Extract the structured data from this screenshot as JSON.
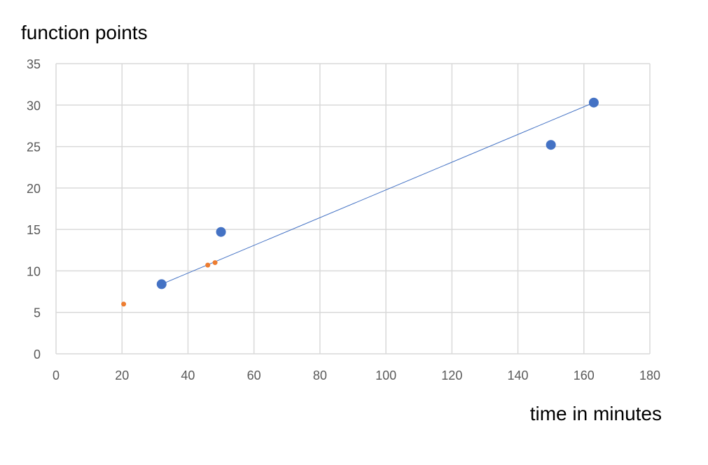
{
  "chart_data": {
    "type": "scatter",
    "ylabel": "function points",
    "xlabel": "time in minutes",
    "xlim": [
      0,
      180
    ],
    "ylim": [
      0,
      35
    ],
    "x_ticks": [
      0,
      20,
      40,
      60,
      80,
      100,
      120,
      140,
      160,
      180
    ],
    "y_ticks": [
      0,
      5,
      10,
      15,
      20,
      25,
      30,
      35
    ],
    "grid": true,
    "series": [
      {
        "color": "#4472C4",
        "marker": "large-circle",
        "points": [
          {
            "x": 32,
            "y": 8.4
          },
          {
            "x": 50,
            "y": 14.7
          },
          {
            "x": 150,
            "y": 25.2
          },
          {
            "x": 163,
            "y": 30.3
          }
        ]
      },
      {
        "color": "#ED7D31",
        "marker": "small-circle",
        "points": [
          {
            "x": 20.5,
            "y": 6.0
          },
          {
            "x": 46,
            "y": 10.7
          },
          {
            "x": 48.2,
            "y": 11.0
          }
        ]
      }
    ],
    "trendline": {
      "color": "#4472C4",
      "from": {
        "x": 32,
        "y": 8.4
      },
      "to": {
        "x": 163,
        "y": 30.3
      }
    }
  }
}
